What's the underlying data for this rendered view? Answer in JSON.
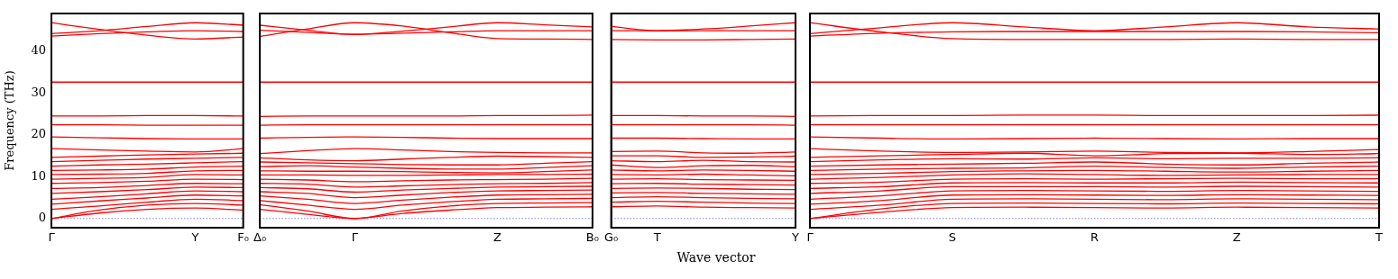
{
  "chart_data": [
    {
      "type": "line",
      "ylabel": "Frequency (THz)",
      "categories": [
        "Γ",
        null,
        null,
        "Y",
        "F₀"
      ],
      "ylim": [
        -2.2,
        49
      ],
      "yticks": [
        0,
        10,
        20,
        30,
        40
      ],
      "marker": "none",
      "ref_lines": [
        {
          "axis": "y",
          "value": 0,
          "color": "#8080ff",
          "line_style": "dotted"
        }
      ],
      "series": [
        {
          "color": "#ff0000",
          "values": [
            0,
            1.3,
            2.2,
            2.5,
            2.0
          ]
        },
        {
          "color": "#ff0000",
          "values": [
            0,
            2.0,
            3.2,
            3.6,
            3.2
          ]
        },
        {
          "color": "#ff0000",
          "values": [
            2.2,
            3.0,
            3.9,
            4.6,
            4.3
          ]
        },
        {
          "color": "#ff0000",
          "values": [
            3.4,
            4.2,
            4.9,
            5.6,
            5.4
          ]
        },
        {
          "color": "#ff0000",
          "values": [
            4.6,
            5.2,
            5.9,
            6.6,
            6.4
          ]
        },
        {
          "color": "#ff0000",
          "values": [
            6.0,
            6.4,
            6.9,
            7.5,
            7.4
          ]
        },
        {
          "color": "#ff0000",
          "values": [
            7.2,
            7.4,
            7.9,
            8.4,
            8.3
          ]
        },
        {
          "color": "#ff0000",
          "values": [
            8.4,
            8.6,
            8.9,
            9.4,
            9.3
          ]
        },
        {
          "color": "#ff0000",
          "values": [
            9.4,
            9.6,
            9.8,
            10.5,
            10.4
          ]
        },
        {
          "color": "#ff0000",
          "values": [
            10.5,
            10.6,
            10.8,
            11.4,
            11.5
          ]
        },
        {
          "color": "#ff0000",
          "values": [
            11.5,
            11.6,
            11.8,
            12.3,
            12.5
          ]
        },
        {
          "color": "#ff0000",
          "values": [
            12.5,
            12.8,
            13.0,
            13.3,
            13.6
          ]
        },
        {
          "color": "#ff0000",
          "values": [
            13.6,
            13.9,
            14.2,
            14.4,
            14.6
          ]
        },
        {
          "color": "#ff0000",
          "values": [
            14.6,
            14.9,
            15.2,
            15.4,
            15.6
          ]
        },
        {
          "color": "#ff0000",
          "values": [
            16.7,
            16.4,
            16.1,
            15.9,
            16.7
          ]
        },
        {
          "color": "#ff0000",
          "values": [
            19.5,
            19.3,
            19.1,
            19.0,
            19.0
          ]
        },
        {
          "color": "#ff0000",
          "values": [
            22.4,
            22.4,
            22.3,
            22.3,
            22.3
          ]
        },
        {
          "color": "#ff0000",
          "values": [
            24.5,
            24.5,
            24.6,
            24.6,
            24.5
          ]
        },
        {
          "color": "#ff0000",
          "values": [
            32.6,
            32.6,
            32.6,
            32.6,
            32.6
          ]
        },
        {
          "color": "#ff0000",
          "values": [
            46.8,
            45.2,
            43.8,
            42.9,
            43.4
          ]
        },
        {
          "color": "#ff0000",
          "values": [
            44.2,
            44.9,
            45.9,
            46.8,
            46.2
          ]
        },
        {
          "color": "#ff0000",
          "values": [
            43.6,
            44.2,
            44.6,
            44.9,
            44.7
          ]
        }
      ]
    },
    {
      "type": "line",
      "categories": [
        "Δ₀",
        null,
        "Γ",
        null,
        null,
        "Z",
        null,
        "B₀"
      ],
      "ylim": [
        -2.2,
        49
      ],
      "yticks": [
        0,
        10,
        20,
        30,
        40
      ],
      "tick_labels": "x",
      "marker": "none",
      "ref_lines": [
        {
          "axis": "y",
          "value": 0,
          "color": "#8080ff",
          "line_style": "dotted"
        }
      ],
      "series": [
        {
          "color": "#ff0000",
          "values": [
            2.2,
            1.0,
            0,
            1.2,
            2.0,
            2.6,
            2.7,
            2.8
          ]
        },
        {
          "color": "#ff0000",
          "values": [
            3.3,
            1.8,
            0,
            1.8,
            3.0,
            3.6,
            3.7,
            3.8
          ]
        },
        {
          "color": "#ff0000",
          "values": [
            4.3,
            3.2,
            2.2,
            3.2,
            4.0,
            4.6,
            4.7,
            4.8
          ]
        },
        {
          "color": "#ff0000",
          "values": [
            5.4,
            4.6,
            3.6,
            4.4,
            5.1,
            5.6,
            5.7,
            5.8
          ]
        },
        {
          "color": "#ff0000",
          "values": [
            6.4,
            6.0,
            5.0,
            5.6,
            6.2,
            6.6,
            6.7,
            6.8
          ]
        },
        {
          "color": "#ff0000",
          "values": [
            7.4,
            7.1,
            6.3,
            6.8,
            7.2,
            7.5,
            7.6,
            7.7
          ]
        },
        {
          "color": "#ff0000",
          "values": [
            8.4,
            8.2,
            7.5,
            7.8,
            8.1,
            8.3,
            8.4,
            8.6
          ]
        },
        {
          "color": "#ff0000",
          "values": [
            9.4,
            9.2,
            8.8,
            9.0,
            9.2,
            9.3,
            9.4,
            9.6
          ]
        },
        {
          "color": "#ff0000",
          "values": [
            10.4,
            10.4,
            10.3,
            10.3,
            10.4,
            10.5,
            10.5,
            10.6
          ]
        },
        {
          "color": "#ff0000",
          "values": [
            11.4,
            11.3,
            11.3,
            11.2,
            11.0,
            10.9,
            11.2,
            11.6
          ]
        },
        {
          "color": "#ff0000",
          "values": [
            12.4,
            12.6,
            12.3,
            12.0,
            11.8,
            11.8,
            12.2,
            12.6
          ]
        },
        {
          "color": "#ff0000",
          "values": [
            13.5,
            13.3,
            13.1,
            12.9,
            12.8,
            12.8,
            13.2,
            13.6
          ]
        },
        {
          "color": "#ff0000",
          "values": [
            14.5,
            14.0,
            13.8,
            14.2,
            14.6,
            14.9,
            14.8,
            14.6
          ]
        },
        {
          "color": "#ff0000",
          "values": [
            15.5,
            16.2,
            16.7,
            16.4,
            16.0,
            15.8,
            15.7,
            15.7
          ]
        },
        {
          "color": "#ff0000",
          "values": [
            19.2,
            19.4,
            19.5,
            19.4,
            19.2,
            19.1,
            19.1,
            19.1
          ]
        },
        {
          "color": "#ff0000",
          "values": [
            22.3,
            22.4,
            22.4,
            22.4,
            22.4,
            22.4,
            22.4,
            22.4
          ]
        },
        {
          "color": "#ff0000",
          "values": [
            24.4,
            24.5,
            24.5,
            24.5,
            24.5,
            24.6,
            24.6,
            24.7
          ]
        },
        {
          "color": "#ff0000",
          "values": [
            32.6,
            32.6,
            32.6,
            32.6,
            32.6,
            32.6,
            32.6,
            32.6
          ]
        },
        {
          "color": "#ff0000",
          "values": [
            43.5,
            45.3,
            46.8,
            46.0,
            44.4,
            43.0,
            42.9,
            42.8
          ]
        },
        {
          "color": "#ff0000",
          "values": [
            46.2,
            45.0,
            44.0,
            44.3,
            44.6,
            44.9,
            44.9,
            44.9
          ]
        },
        {
          "color": "#ff0000",
          "values": [
            45.0,
            44.5,
            44.0,
            44.8,
            45.8,
            46.8,
            46.3,
            45.8
          ]
        }
      ]
    },
    {
      "type": "line",
      "xlabel": "Wave vector",
      "categories": [
        "G₀",
        "T",
        null,
        null,
        "Y"
      ],
      "ylim": [
        -2.2,
        49
      ],
      "yticks": [
        0,
        10,
        20,
        30,
        40
      ],
      "tick_labels": "x",
      "marker": "none",
      "ref_lines": [
        {
          "axis": "y",
          "value": 0,
          "color": "#8080ff",
          "line_style": "dotted"
        }
      ],
      "series": [
        {
          "color": "#ff0000",
          "values": [
            2.8,
            3.0,
            2.7,
            2.6,
            2.5
          ]
        },
        {
          "color": "#ff0000",
          "values": [
            3.9,
            4.1,
            3.9,
            3.7,
            3.6
          ]
        },
        {
          "color": "#ff0000",
          "values": [
            5.0,
            5.2,
            5.0,
            4.8,
            4.7
          ]
        },
        {
          "color": "#ff0000",
          "values": [
            6.1,
            6.2,
            6.0,
            5.9,
            5.8
          ]
        },
        {
          "color": "#ff0000",
          "values": [
            7.2,
            7.3,
            7.2,
            7.0,
            6.9
          ]
        },
        {
          "color": "#ff0000",
          "values": [
            8.3,
            8.4,
            8.2,
            8.1,
            8.0
          ]
        },
        {
          "color": "#ff0000",
          "values": [
            9.4,
            9.5,
            9.3,
            9.2,
            9.1
          ]
        },
        {
          "color": "#ff0000",
          "values": [
            10.5,
            10.4,
            10.6,
            10.4,
            10.2
          ]
        },
        {
          "color": "#ff0000",
          "values": [
            11.6,
            11.4,
            11.6,
            11.5,
            11.3
          ]
        },
        {
          "color": "#ff0000",
          "values": [
            12.8,
            12.2,
            12.6,
            12.7,
            12.4
          ]
        },
        {
          "color": "#ff0000",
          "values": [
            13.8,
            13.6,
            13.9,
            13.6,
            13.5
          ]
        },
        {
          "color": "#ff0000",
          "values": [
            15.0,
            15.0,
            14.6,
            14.7,
            14.9
          ]
        },
        {
          "color": "#ff0000",
          "values": [
            16.0,
            16.1,
            15.7,
            15.6,
            15.9
          ]
        },
        {
          "color": "#ff0000",
          "values": [
            19.2,
            19.2,
            19.1,
            19.0,
            19.0
          ]
        },
        {
          "color": "#ff0000",
          "values": [
            22.4,
            22.4,
            22.4,
            22.4,
            22.3
          ]
        },
        {
          "color": "#ff0000",
          "values": [
            24.6,
            24.6,
            24.5,
            24.5,
            24.4
          ]
        },
        {
          "color": "#ff0000",
          "values": [
            32.6,
            32.6,
            32.6,
            32.6,
            32.6
          ]
        },
        {
          "color": "#ff0000",
          "values": [
            42.8,
            42.7,
            42.7,
            42.8,
            42.9
          ]
        },
        {
          "color": "#ff0000",
          "values": [
            44.9,
            44.9,
            44.9,
            44.9,
            44.9
          ]
        },
        {
          "color": "#ff0000",
          "values": [
            45.9,
            44.9,
            45.3,
            46.0,
            46.8
          ]
        }
      ]
    },
    {
      "type": "line",
      "categories": [
        "Γ",
        null,
        "S",
        null,
        "R",
        null,
        "Z",
        null,
        "T"
      ],
      "ylim": [
        -2.2,
        49
      ],
      "yticks": [
        0,
        10,
        20,
        30,
        40
      ],
      "tick_labels": "x",
      "marker": "none",
      "ref_lines": [
        {
          "axis": "y",
          "value": 0,
          "color": "#8080ff",
          "line_style": "dotted"
        }
      ],
      "series": [
        {
          "color": "#ff0000",
          "values": [
            0,
            1.5,
            2.6,
            2.7,
            2.6,
            2.5,
            2.7,
            2.6,
            2.5
          ]
        },
        {
          "color": "#ff0000",
          "values": [
            0,
            2.3,
            3.6,
            3.7,
            3.6,
            3.5,
            3.7,
            3.6,
            3.5
          ]
        },
        {
          "color": "#ff0000",
          "values": [
            2.2,
            3.2,
            4.6,
            4.7,
            4.6,
            4.5,
            4.7,
            4.6,
            4.5
          ]
        },
        {
          "color": "#ff0000",
          "values": [
            3.4,
            4.3,
            5.6,
            5.7,
            5.6,
            5.5,
            5.7,
            5.6,
            5.5
          ]
        },
        {
          "color": "#ff0000",
          "values": [
            4.6,
            5.4,
            6.6,
            6.7,
            6.6,
            6.5,
            6.7,
            6.6,
            6.5
          ]
        },
        {
          "color": "#ff0000",
          "values": [
            6.0,
            6.6,
            7.6,
            7.6,
            7.6,
            7.5,
            7.7,
            7.6,
            7.5
          ]
        },
        {
          "color": "#ff0000",
          "values": [
            7.2,
            7.6,
            8.5,
            8.6,
            8.5,
            8.5,
            8.7,
            8.6,
            8.5
          ]
        },
        {
          "color": "#ff0000",
          "values": [
            8.4,
            8.7,
            9.4,
            9.5,
            9.4,
            9.5,
            9.6,
            9.5,
            9.5
          ]
        },
        {
          "color": "#ff0000",
          "values": [
            9.4,
            9.8,
            10.4,
            10.7,
            10.5,
            10.3,
            10.4,
            10.5,
            10.5
          ]
        },
        {
          "color": "#ff0000",
          "values": [
            10.5,
            10.8,
            11.2,
            11.4,
            11.5,
            11.3,
            11.1,
            11.3,
            11.5
          ]
        },
        {
          "color": "#ff0000",
          "values": [
            11.5,
            11.8,
            12.0,
            12.1,
            12.5,
            12.2,
            12.0,
            12.3,
            12.5
          ]
        },
        {
          "color": "#ff0000",
          "values": [
            12.5,
            12.8,
            13.0,
            13.2,
            13.5,
            13.0,
            12.8,
            13.2,
            13.5
          ]
        },
        {
          "color": "#ff0000",
          "values": [
            13.6,
            14.0,
            14.3,
            14.2,
            14.5,
            14.3,
            14.4,
            14.4,
            14.5
          ]
        },
        {
          "color": "#ff0000",
          "values": [
            14.6,
            15.0,
            15.3,
            15.6,
            15.0,
            15.5,
            15.6,
            15.3,
            15.5
          ]
        },
        {
          "color": "#ff0000",
          "values": [
            16.7,
            16.1,
            15.8,
            15.9,
            16.1,
            15.8,
            15.7,
            16.0,
            16.5
          ]
        },
        {
          "color": "#ff0000",
          "values": [
            19.5,
            19.2,
            19.0,
            19.1,
            19.2,
            19.1,
            19.0,
            19.1,
            19.1
          ]
        },
        {
          "color": "#ff0000",
          "values": [
            22.4,
            22.4,
            22.4,
            22.4,
            22.4,
            22.4,
            22.4,
            22.4,
            22.4
          ]
        },
        {
          "color": "#ff0000",
          "values": [
            24.5,
            24.6,
            24.6,
            24.7,
            24.7,
            24.6,
            24.6,
            24.6,
            24.7
          ]
        },
        {
          "color": "#ff0000",
          "values": [
            32.6,
            32.6,
            32.6,
            32.6,
            32.6,
            32.6,
            32.6,
            32.6,
            32.6
          ]
        },
        {
          "color": "#ff0000",
          "values": [
            46.8,
            44.6,
            43.0,
            42.8,
            42.8,
            42.8,
            42.9,
            42.8,
            42.8
          ]
        },
        {
          "color": "#ff0000",
          "values": [
            44.2,
            45.6,
            46.8,
            45.8,
            44.9,
            45.8,
            46.8,
            45.8,
            45.3
          ]
        },
        {
          "color": "#ff0000",
          "values": [
            43.6,
            44.3,
            44.6,
            44.7,
            44.7,
            44.7,
            44.7,
            44.6,
            44.4
          ]
        }
      ]
    }
  ]
}
